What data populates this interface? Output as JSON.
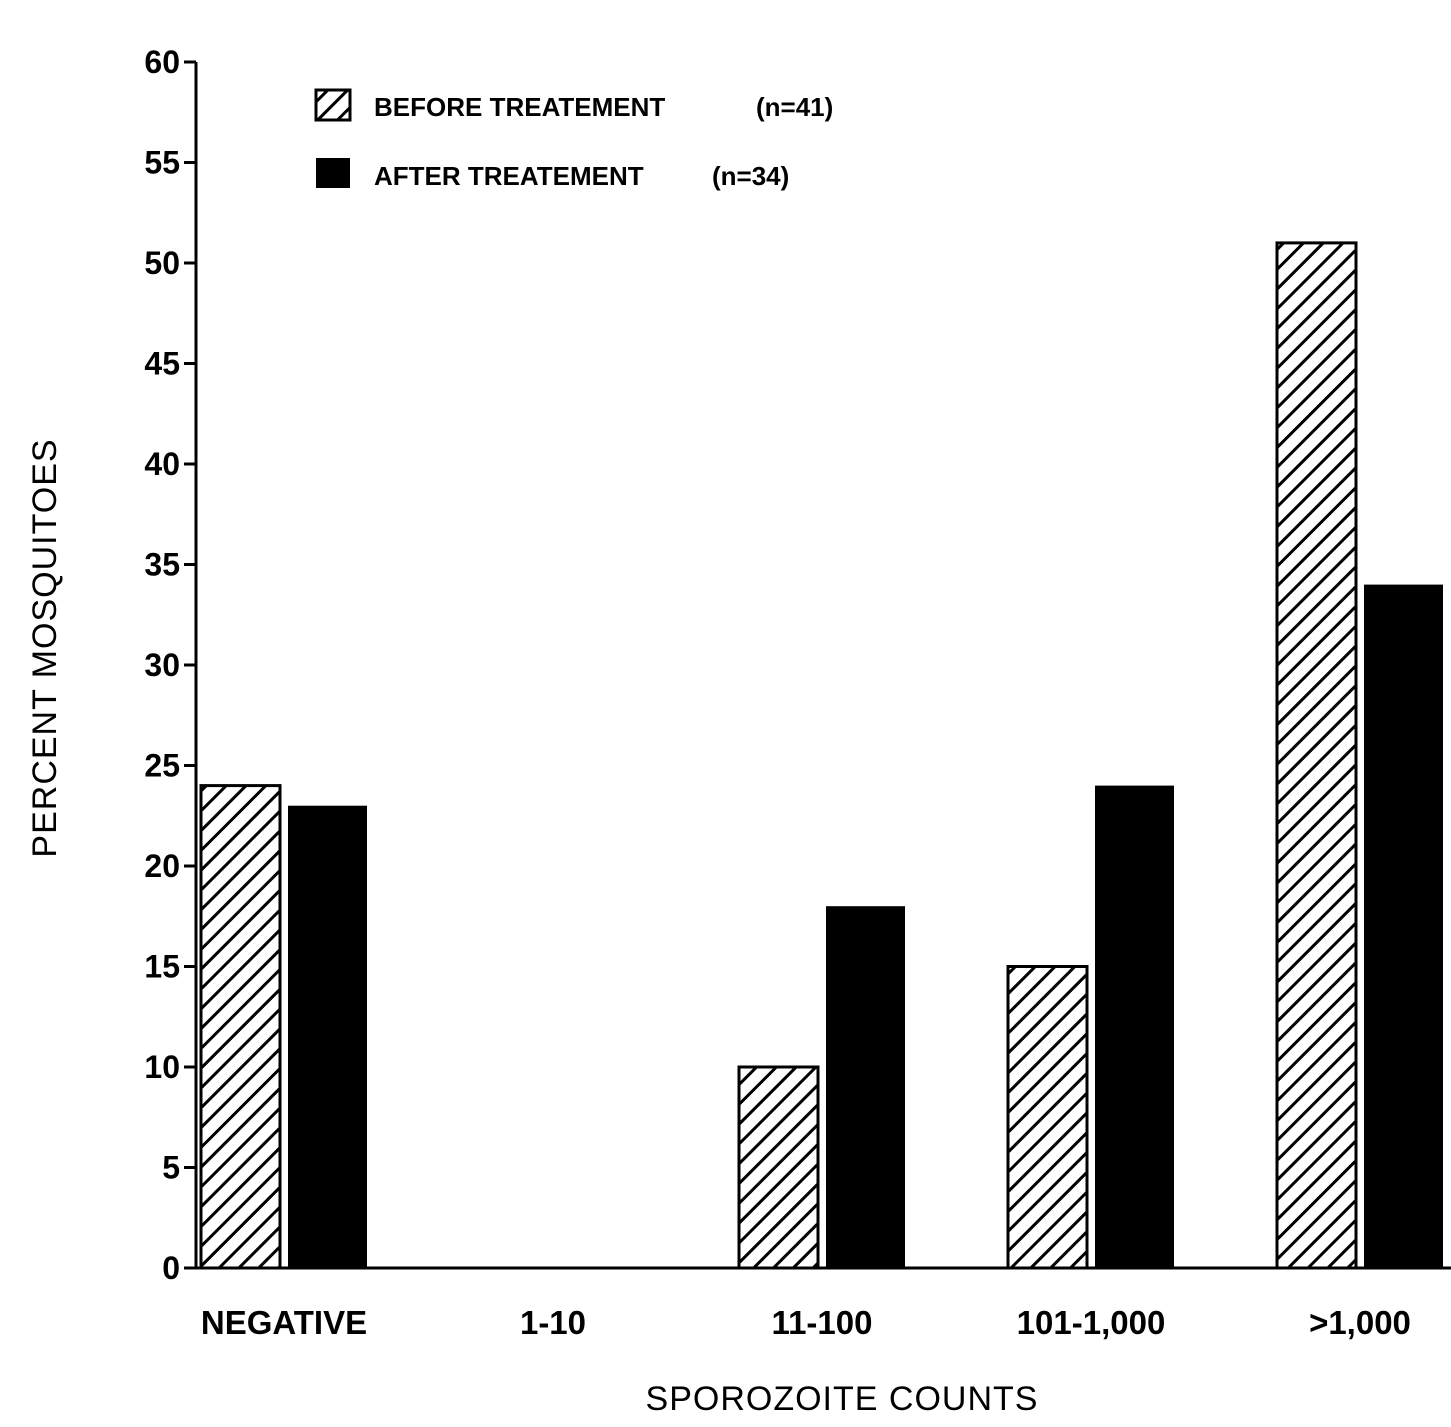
{
  "chart_data": {
    "type": "bar",
    "categories": [
      "NEGATIVE",
      "1-10",
      "11-100",
      "101-1,000",
      ">1,000"
    ],
    "series": [
      {
        "name": "BEFORE TREATEMENT",
        "n_label": "(n=41)",
        "pattern": "hatched",
        "values": [
          24,
          0,
          10,
          15,
          51
        ]
      },
      {
        "name": "AFTER TREATEMENT",
        "n_label": "(n=34)",
        "pattern": "solid",
        "values": [
          23,
          0,
          18,
          24,
          34
        ]
      }
    ],
    "xlabel": "SPOROZOITE COUNTS",
    "ylabel": "PERCENT MOSQUITOES",
    "ylim": [
      0,
      60
    ],
    "yticks": [
      0,
      5,
      10,
      15,
      20,
      25,
      30,
      35,
      40,
      45,
      50,
      55,
      60
    ],
    "legend_position": "top-left",
    "grid": false,
    "colors": {
      "bar": "#000000",
      "background": "#ffffff"
    }
  }
}
